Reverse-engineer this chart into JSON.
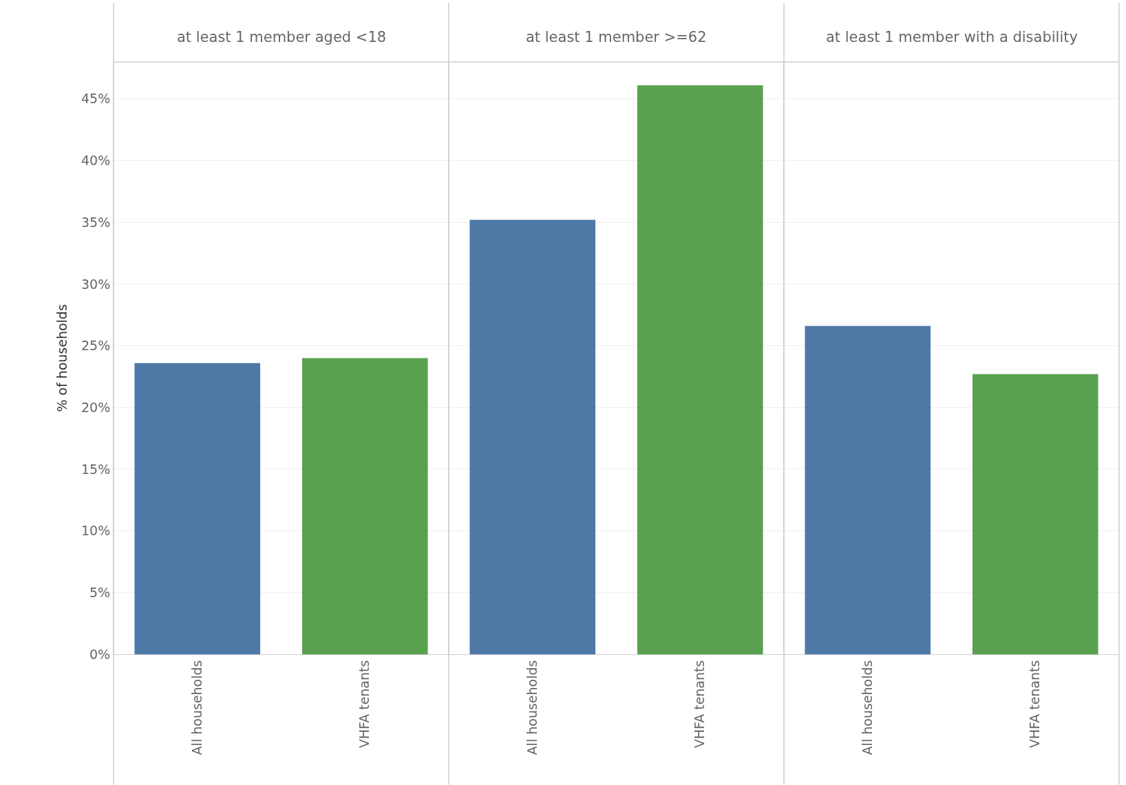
{
  "chart_data": [
    {
      "type": "bar",
      "title": "at least 1 member aged <18",
      "ylabel": "% of households",
      "categories": [
        "All households",
        "VHFA tenants"
      ],
      "values": [
        23.6,
        24.0
      ],
      "colors": [
        "#4e79a7",
        "#59a14f"
      ],
      "ylim": [
        0,
        48
      ],
      "yticks": [
        {
          "value": 0,
          "label": "0%"
        },
        {
          "value": 5,
          "label": "5%"
        },
        {
          "value": 10,
          "label": "10%"
        },
        {
          "value": 15,
          "label": "15%"
        },
        {
          "value": 20,
          "label": "20%"
        },
        {
          "value": 25,
          "label": "25%"
        },
        {
          "value": 30,
          "label": "30%"
        },
        {
          "value": 35,
          "label": "35%"
        },
        {
          "value": 40,
          "label": "40%"
        },
        {
          "value": 45,
          "label": "45%"
        }
      ],
      "grid": "y"
    },
    {
      "type": "bar",
      "title": "at least 1 member >=62",
      "categories": [
        "All households",
        "VHFA tenants"
      ],
      "values": [
        35.2,
        46.1
      ],
      "colors": [
        "#4e79a7",
        "#59a14f"
      ],
      "ylim": [
        0,
        48
      ],
      "yticks": [
        {
          "value": 0,
          "label": null
        },
        {
          "value": 5,
          "label": null
        },
        {
          "value": 10,
          "label": null
        },
        {
          "value": 15,
          "label": null
        },
        {
          "value": 20,
          "label": null
        },
        {
          "value": 25,
          "label": null
        },
        {
          "value": 30,
          "label": null
        },
        {
          "value": 35,
          "label": null
        },
        {
          "value": 40,
          "label": null
        },
        {
          "value": 45,
          "label": null
        }
      ],
      "grid": "y",
      "tick_labels": "x"
    },
    {
      "type": "bar",
      "title": "at least 1 member with a disability",
      "categories": [
        "All households",
        "VHFA tenants"
      ],
      "values": [
        26.6,
        22.7
      ],
      "colors": [
        "#4e79a7",
        "#59a14f"
      ],
      "ylim": [
        0,
        48
      ],
      "yticks": [
        {
          "value": 0,
          "label": null
        },
        {
          "value": 5,
          "label": null
        },
        {
          "value": 10,
          "label": null
        },
        {
          "value": 15,
          "label": null
        },
        {
          "value": 20,
          "label": null
        },
        {
          "value": 25,
          "label": null
        },
        {
          "value": 30,
          "label": null
        },
        {
          "value": 35,
          "label": null
        },
        {
          "value": 40,
          "label": null
        },
        {
          "value": 45,
          "label": null
        }
      ],
      "grid": "y",
      "tick_labels": "x"
    }
  ]
}
